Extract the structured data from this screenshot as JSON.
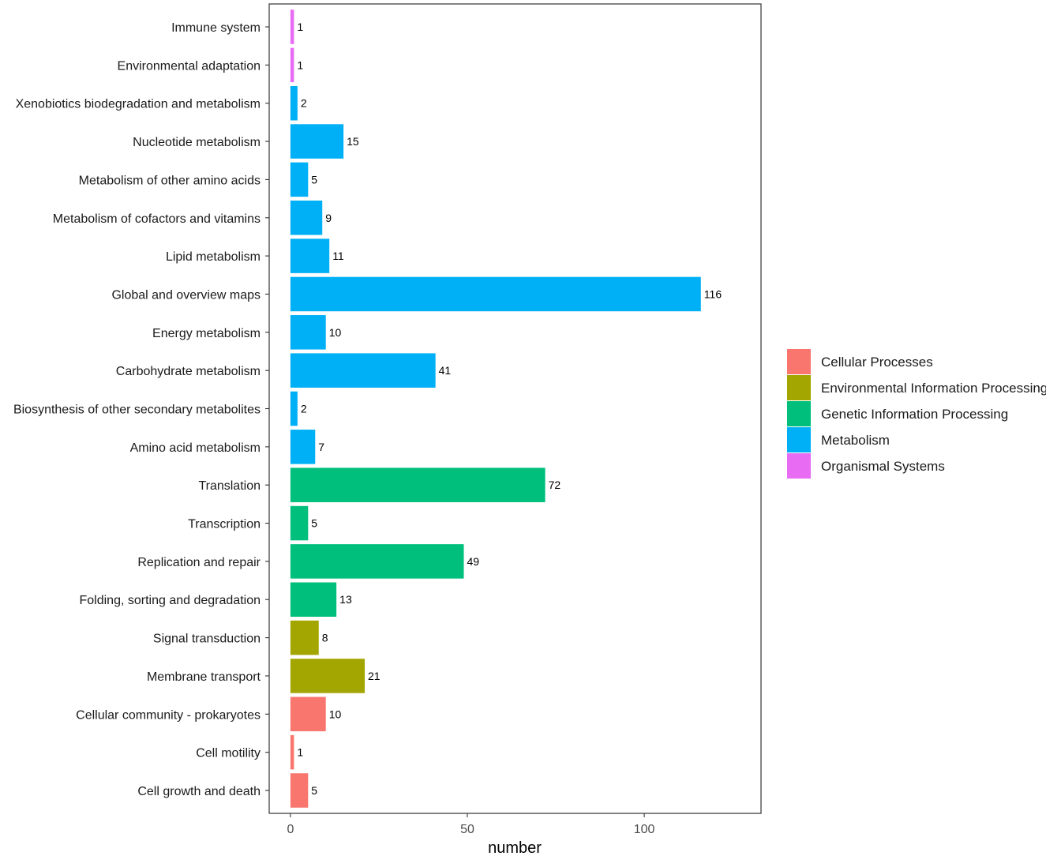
{
  "chart_data": {
    "type": "bar",
    "orientation": "horizontal",
    "xlabel": "number",
    "ylabel": "",
    "xlim": [
      -6,
      133
    ],
    "xticks": [
      0,
      50,
      100
    ],
    "grid": false,
    "legend_position": "right",
    "legend": [
      {
        "name": "Cellular Processes",
        "color": "#F8766D"
      },
      {
        "name": "Environmental Information Processing",
        "color": "#A3A500"
      },
      {
        "name": "Genetic Information Processing",
        "color": "#00BF7D"
      },
      {
        "name": "Metabolism",
        "color": "#00B0F6"
      },
      {
        "name": "Organismal Systems",
        "color": "#E76BF3"
      }
    ],
    "bars": [
      {
        "label": "Immune system",
        "value": 1,
        "value_text": "1",
        "group": "Organismal Systems"
      },
      {
        "label": "Environmental adaptation",
        "value": 1,
        "value_text": "1",
        "group": "Organismal Systems"
      },
      {
        "label": "Xenobiotics biodegradation and metabolism",
        "value": 2,
        "value_text": "2",
        "group": "Metabolism"
      },
      {
        "label": "Nucleotide metabolism",
        "value": 15,
        "value_text": "15",
        "group": "Metabolism"
      },
      {
        "label": "Metabolism of other amino acids",
        "value": 5,
        "value_text": "5",
        "group": "Metabolism"
      },
      {
        "label": "Metabolism of cofactors and vitamins",
        "value": 9,
        "value_text": "9",
        "group": "Metabolism"
      },
      {
        "label": "Lipid metabolism",
        "value": 11,
        "value_text": "11",
        "group": "Metabolism"
      },
      {
        "label": "Global and overview maps",
        "value": 116,
        "value_text": "116",
        "group": "Metabolism"
      },
      {
        "label": "Energy metabolism",
        "value": 10,
        "value_text": "10",
        "group": "Metabolism"
      },
      {
        "label": "Carbohydrate metabolism",
        "value": 41,
        "value_text": "41",
        "group": "Metabolism"
      },
      {
        "label": "Biosynthesis of other secondary metabolites",
        "value": 2,
        "value_text": "2",
        "group": "Metabolism"
      },
      {
        "label": "Amino acid metabolism",
        "value": 7,
        "value_text": "7",
        "group": "Metabolism"
      },
      {
        "label": "Translation",
        "value": 72,
        "value_text": "72",
        "group": "Genetic Information Processing"
      },
      {
        "label": "Transcription",
        "value": 5,
        "value_text": "5",
        "group": "Genetic Information Processing"
      },
      {
        "label": "Replication and repair",
        "value": 49,
        "value_text": "49",
        "group": "Genetic Information Processing"
      },
      {
        "label": "Folding, sorting and degradation",
        "value": 13,
        "value_text": "13",
        "group": "Genetic Information Processing"
      },
      {
        "label": "Signal transduction",
        "value": 8,
        "value_text": "8",
        "group": "Environmental Information Processing"
      },
      {
        "label": "Membrane transport",
        "value": 21,
        "value_text": "21",
        "group": "Environmental Information Processing"
      },
      {
        "label": "Cellular community - prokaryotes",
        "value": 10,
        "value_text": "10",
        "group": "Cellular Processes"
      },
      {
        "label": "Cell motility",
        "value": 1,
        "value_text": "1",
        "group": "Cellular Processes"
      },
      {
        "label": "Cell growth and death",
        "value": 5,
        "value_text": "5",
        "group": "Cellular Processes"
      }
    ]
  }
}
